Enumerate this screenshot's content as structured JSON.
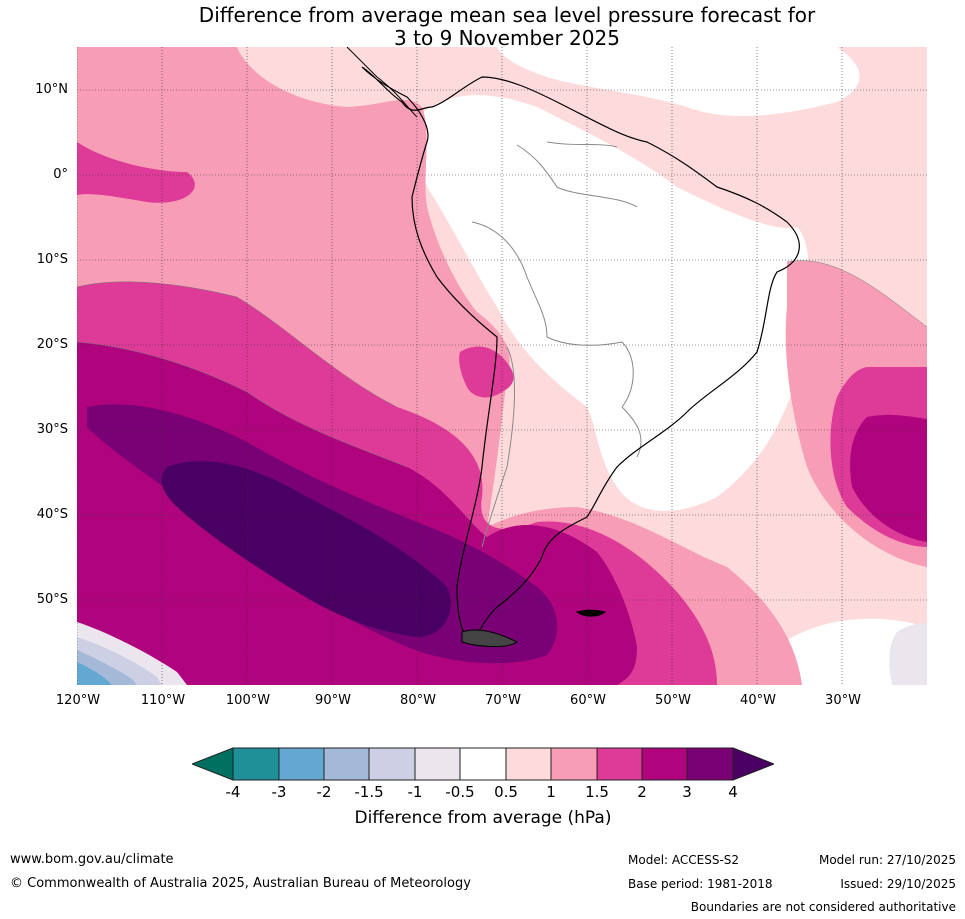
{
  "title": {
    "line1": "Difference from average mean sea level pressure forecast for",
    "line2": "3 to 9 November 2025"
  },
  "map": {
    "lat_labels": [
      "10°N",
      "0°",
      "10°S",
      "20°S",
      "30°S",
      "40°S",
      "50°S"
    ],
    "lon_labels": [
      "120°W",
      "110°W",
      "100°W",
      "90°W",
      "80°W",
      "70°W",
      "60°W",
      "50°W",
      "40°W",
      "30°W"
    ]
  },
  "colorbar": {
    "ticks": [
      "-4",
      "-3",
      "-2",
      "-1.5",
      "-1",
      "-0.5",
      "0.5",
      "1",
      "1.5",
      "2",
      "3",
      "4"
    ],
    "colors": [
      "#007060",
      "#1f9098",
      "#63a8d0",
      "#a4b8d8",
      "#cdd0e4",
      "#ebe6ee",
      "#ffffff",
      "#fddbdc",
      "#f89db6",
      "#de3a97",
      "#b0047e",
      "#7a0075",
      "#4a0063"
    ],
    "label": "Difference from average (hPa)"
  },
  "footer": {
    "website": "www.bom.gov.au/climate",
    "copyright": "© Commonwealth of Australia 2025, Australian Bureau of Meteorology",
    "model": "Model: ACCESS-S2",
    "base_period": "Base period: 1981-2018",
    "model_run": "Model run: 27/10/2025",
    "issued": "Issued: 29/10/2025",
    "disclaimer": "Boundaries are not considered authoritative"
  }
}
